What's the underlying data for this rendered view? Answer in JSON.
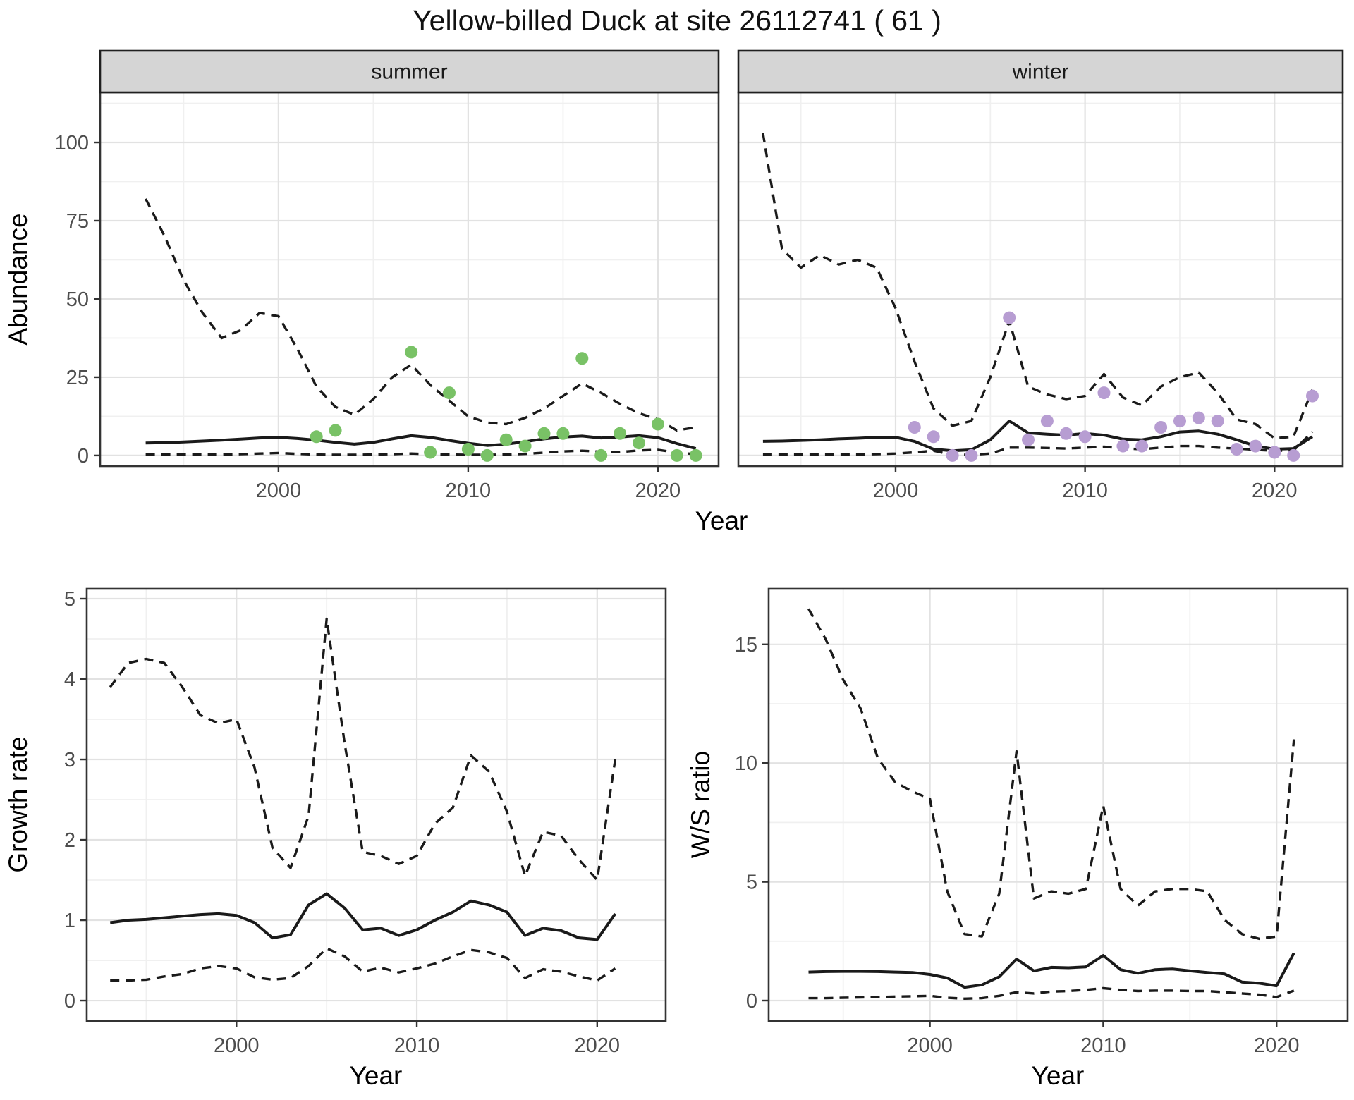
{
  "title": "Yellow-billed Duck at site 26112741 ( 61 )",
  "colors": {
    "summer_point": "#79c266",
    "winter_point": "#b79dd2",
    "line": "#1a1a1a",
    "strip_bg": "#d5d5d5",
    "strip_border": "#1f1f1f",
    "panel_border": "#333333",
    "grid_major": "#e2e2e2",
    "grid_minor": "#f0f0f0",
    "axis_text": "#4d4d4d",
    "axis_title": "#000000",
    "background": "#ffffff"
  },
  "chart_data": [
    {
      "id": "abundance-summer",
      "type": "line",
      "facet_label": "summer",
      "ylabel": "Abundance",
      "xlabel": "Year",
      "x_ticks": [
        2000,
        2010,
        2020
      ],
      "x_minor": [
        1995,
        2005,
        2015
      ],
      "y_ticks": [
        0,
        25,
        50,
        75,
        100
      ],
      "y_minor": [
        12.5,
        37.5,
        62.5,
        87.5,
        112.5
      ],
      "xlim": [
        1990.6,
        2023.2
      ],
      "ylim": [
        -3.4,
        116.0
      ],
      "x": [
        1993,
        1994,
        1995,
        1996,
        1997,
        1998,
        1999,
        2000,
        2001,
        2002,
        2003,
        2004,
        2005,
        2006,
        2007,
        2008,
        2009,
        2010,
        2011,
        2012,
        2013,
        2014,
        2015,
        2016,
        2017,
        2018,
        2019,
        2020,
        2021,
        2022
      ],
      "series": [
        {
          "name": "upper-95ci",
          "style": "dashed",
          "values": [
            82,
            70,
            56,
            45.5,
            37.5,
            40,
            45.5,
            44.5,
            34,
            22,
            15.5,
            13,
            18,
            25,
            29,
            22.5,
            17.5,
            12.5,
            10.5,
            10,
            12,
            15,
            19,
            23,
            20,
            16.5,
            13.5,
            11.5,
            8,
            9
          ]
        },
        {
          "name": "median",
          "style": "solid",
          "values": [
            4,
            4.1,
            4.3,
            4.6,
            4.9,
            5.2,
            5.6,
            5.8,
            5.4,
            4.9,
            4.2,
            3.6,
            4.2,
            5.3,
            6.3,
            5.8,
            4.8,
            3.9,
            3.2,
            3.6,
            4.4,
            5.3,
            5.9,
            6.2,
            5.6,
            5.9,
            6.3,
            5.7,
            3.8,
            2.2
          ]
        },
        {
          "name": "lower-95ci",
          "style": "dashed",
          "values": [
            0.3,
            0.3,
            0.3,
            0.3,
            0.3,
            0.4,
            0.6,
            0.8,
            0.5,
            0.3,
            0.2,
            0.2,
            0.3,
            0.4,
            0.6,
            0.4,
            0.3,
            0.2,
            0.2,
            0.3,
            0.5,
            0.9,
            1.3,
            1.5,
            1.2,
            1.1,
            1.6,
            1.8,
            0.9,
            0.4
          ]
        }
      ],
      "points": {
        "name": "observed-counts-summer",
        "color_key": "summer_point",
        "xy": [
          [
            2002,
            6
          ],
          [
            2003,
            8
          ],
          [
            2007,
            33
          ],
          [
            2008,
            1
          ],
          [
            2009,
            20
          ],
          [
            2010,
            2
          ],
          [
            2011,
            0
          ],
          [
            2012,
            5
          ],
          [
            2013,
            3
          ],
          [
            2014,
            7
          ],
          [
            2015,
            7
          ],
          [
            2016,
            31
          ],
          [
            2017,
            0
          ],
          [
            2018,
            7
          ],
          [
            2019,
            4
          ],
          [
            2020,
            10
          ],
          [
            2021,
            0
          ],
          [
            2022,
            0
          ]
        ]
      }
    },
    {
      "id": "abundance-winter",
      "type": "line",
      "facet_label": "winter",
      "ylabel": "Abundance",
      "xlabel": "Year",
      "x_ticks": [
        2000,
        2010,
        2020
      ],
      "x_minor": [
        1995,
        2005,
        2015
      ],
      "y_ticks": [
        0,
        25,
        50,
        75,
        100
      ],
      "y_minor": [
        12.5,
        37.5,
        62.5,
        87.5,
        112.5
      ],
      "xlim": [
        1991.7,
        2023.6
      ],
      "ylim": [
        -3.4,
        116.0
      ],
      "x": [
        1993,
        1994,
        1995,
        1996,
        1997,
        1998,
        1999,
        2000,
        2001,
        2002,
        2003,
        2004,
        2005,
        2006,
        2007,
        2008,
        2009,
        2010,
        2011,
        2012,
        2013,
        2014,
        2015,
        2016,
        2017,
        2018,
        2019,
        2020,
        2021,
        2022
      ],
      "series": [
        {
          "name": "upper-95ci",
          "style": "dashed",
          "values": [
            103,
            66,
            60,
            64,
            61,
            62.5,
            60,
            47,
            30,
            15,
            9.5,
            11,
            25,
            43,
            22,
            19.5,
            18,
            19,
            26,
            18.5,
            16,
            22,
            25,
            26.5,
            20,
            11.5,
            10,
            5.5,
            6,
            21
          ]
        },
        {
          "name": "median",
          "style": "solid",
          "values": [
            4.5,
            4.6,
            4.8,
            5,
            5.3,
            5.5,
            5.8,
            5.8,
            4.5,
            2,
            1.5,
            1.8,
            5,
            11,
            7.2,
            6.8,
            6.5,
            7,
            6.5,
            5.2,
            5,
            6,
            7.5,
            7.8,
            6.8,
            5,
            3,
            2,
            2.2,
            6
          ]
        },
        {
          "name": "lower-95ci",
          "style": "dashed",
          "values": [
            0.3,
            0.3,
            0.3,
            0.3,
            0.3,
            0.3,
            0.4,
            0.6,
            1,
            1.5,
            0.2,
            0.2,
            0.6,
            2.5,
            2.5,
            2.4,
            2.2,
            2.5,
            2.8,
            2.2,
            2,
            2.5,
            3,
            3,
            2.5,
            2.2,
            1.8,
            1.5,
            1.6,
            7.5
          ]
        }
      ],
      "points": {
        "name": "observed-counts-winter",
        "color_key": "winter_point",
        "xy": [
          [
            2001,
            9
          ],
          [
            2002,
            6
          ],
          [
            2003,
            0
          ],
          [
            2004,
            0
          ],
          [
            2006,
            44
          ],
          [
            2007,
            5
          ],
          [
            2008,
            11
          ],
          [
            2009,
            7
          ],
          [
            2010,
            6
          ],
          [
            2011,
            20
          ],
          [
            2012,
            3
          ],
          [
            2013,
            3
          ],
          [
            2014,
            9
          ],
          [
            2015,
            11
          ],
          [
            2016,
            12
          ],
          [
            2017,
            11
          ],
          [
            2018,
            2
          ],
          [
            2019,
            3
          ],
          [
            2020,
            1
          ],
          [
            2021,
            0
          ],
          [
            2022,
            19
          ]
        ]
      }
    },
    {
      "id": "growth-rate",
      "type": "line",
      "facet_label": null,
      "ylabel": "Growth rate",
      "xlabel": "Year",
      "x_ticks": [
        2000,
        2010,
        2020
      ],
      "x_minor": [
        1995,
        2005,
        2015
      ],
      "y_ticks": [
        0,
        1,
        2,
        3,
        4,
        5
      ],
      "y_minor": [
        0.5,
        1.5,
        2.5,
        3.5,
        4.5
      ],
      "xlim": [
        1991.7,
        2023.8
      ],
      "ylim": [
        -0.254,
        5.123
      ],
      "x": [
        1993,
        1994,
        1995,
        1996,
        1997,
        1998,
        1999,
        2000,
        2001,
        2002,
        2003,
        2004,
        2005,
        2006,
        2007,
        2008,
        2009,
        2010,
        2011,
        2012,
        2013,
        2014,
        2015,
        2016,
        2017,
        2018,
        2019,
        2020,
        2021
      ],
      "series": [
        {
          "name": "upper-95ci",
          "style": "dashed",
          "values": [
            3.9,
            4.2,
            4.25,
            4.2,
            3.9,
            3.55,
            3.45,
            3.5,
            2.9,
            1.9,
            1.65,
            2.3,
            4.75,
            3.2,
            1.85,
            1.8,
            1.7,
            1.8,
            2.2,
            2.4,
            3.05,
            2.85,
            2.35,
            1.55,
            2.1,
            2.05,
            1.75,
            1.5,
            3.0
          ]
        },
        {
          "name": "median",
          "style": "solid",
          "values": [
            0.97,
            1.0,
            1.01,
            1.03,
            1.05,
            1.07,
            1.08,
            1.06,
            0.97,
            0.78,
            0.82,
            1.19,
            1.33,
            1.15,
            0.88,
            0.9,
            0.81,
            0.88,
            1.0,
            1.1,
            1.24,
            1.19,
            1.1,
            0.81,
            0.9,
            0.87,
            0.78,
            0.76,
            1.08
          ]
        },
        {
          "name": "lower-95ci",
          "style": "dashed",
          "values": [
            0.25,
            0.25,
            0.26,
            0.3,
            0.33,
            0.4,
            0.43,
            0.4,
            0.29,
            0.26,
            0.28,
            0.43,
            0.65,
            0.55,
            0.36,
            0.41,
            0.35,
            0.4,
            0.46,
            0.55,
            0.63,
            0.6,
            0.53,
            0.28,
            0.39,
            0.36,
            0.3,
            0.25,
            0.4
          ]
        }
      ],
      "points": null
    },
    {
      "id": "ws-ratio",
      "type": "line",
      "facet_label": null,
      "ylabel": "W/S ratio",
      "xlabel": "Year",
      "x_ticks": [
        2000,
        2010,
        2020
      ],
      "x_minor": [
        1995,
        2005,
        2015
      ],
      "y_ticks": [
        0,
        5,
        10,
        15
      ],
      "y_minor": [
        2.5,
        7.5,
        12.5
      ],
      "xlim": [
        1990.7,
        2024.1
      ],
      "ylim": [
        -0.861,
        17.34
      ],
      "x": [
        1993,
        1994,
        1995,
        1996,
        1997,
        1998,
        1999,
        2000,
        2001,
        2002,
        2003,
        2004,
        2005,
        2006,
        2007,
        2008,
        2009,
        2010,
        2011,
        2012,
        2013,
        2014,
        2015,
        2016,
        2017,
        2018,
        2019,
        2020,
        2021
      ],
      "series": [
        {
          "name": "upper-95ci",
          "style": "dashed",
          "values": [
            16.5,
            15.2,
            13.5,
            12.3,
            10.2,
            9.2,
            8.8,
            8.5,
            4.6,
            2.8,
            2.7,
            4.5,
            10.5,
            4.3,
            4.6,
            4.5,
            4.7,
            8.2,
            4.7,
            4.0,
            4.6,
            4.7,
            4.7,
            4.6,
            3.4,
            2.8,
            2.6,
            2.7,
            11.0
          ]
        },
        {
          "name": "median",
          "style": "solid",
          "values": [
            1.2,
            1.22,
            1.23,
            1.23,
            1.22,
            1.2,
            1.18,
            1.1,
            0.95,
            0.56,
            0.66,
            1.0,
            1.75,
            1.25,
            1.4,
            1.38,
            1.42,
            1.9,
            1.3,
            1.15,
            1.3,
            1.33,
            1.25,
            1.18,
            1.12,
            0.78,
            0.73,
            0.62,
            2.0
          ]
        },
        {
          "name": "lower-95ci",
          "style": "dashed",
          "values": [
            0.1,
            0.1,
            0.12,
            0.13,
            0.15,
            0.17,
            0.18,
            0.2,
            0.12,
            0.08,
            0.1,
            0.2,
            0.35,
            0.3,
            0.38,
            0.4,
            0.45,
            0.52,
            0.45,
            0.4,
            0.42,
            0.42,
            0.4,
            0.4,
            0.35,
            0.3,
            0.25,
            0.15,
            0.42
          ]
        }
      ],
      "points": null
    }
  ]
}
